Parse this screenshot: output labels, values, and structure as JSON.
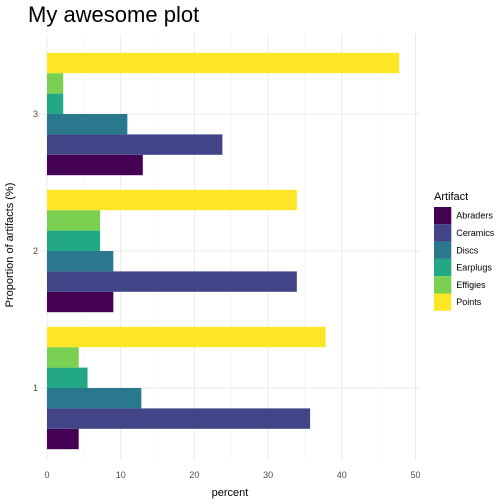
{
  "chart_data": {
    "type": "bar",
    "orientation": "horizontal",
    "title": "My awesome plot",
    "xlabel": "percent",
    "ylabel": "Proportion of artifacts (%)",
    "xlim": [
      0,
      50
    ],
    "x_ticks": [
      0,
      10,
      20,
      30,
      40,
      50
    ],
    "categories": [
      "1",
      "2",
      "3"
    ],
    "legend_title": "Artifact",
    "legend_position": "right",
    "grid": true,
    "series": [
      {
        "name": "Abraders",
        "color": "#440154",
        "values": [
          4.3,
          9.0,
          13.0
        ]
      },
      {
        "name": "Ceramics",
        "color": "#414487",
        "values": [
          35.7,
          33.9,
          23.8
        ]
      },
      {
        "name": "Discs",
        "color": "#2a788e",
        "values": [
          12.8,
          9.0,
          10.9
        ]
      },
      {
        "name": "Earplugs",
        "color": "#22a884",
        "values": [
          5.5,
          7.2,
          2.2
        ]
      },
      {
        "name": "Effigies",
        "color": "#7ad151",
        "values": [
          4.3,
          7.2,
          2.2
        ]
      },
      {
        "name": "Points",
        "color": "#fde725",
        "values": [
          37.8,
          33.9,
          47.8
        ]
      }
    ]
  }
}
